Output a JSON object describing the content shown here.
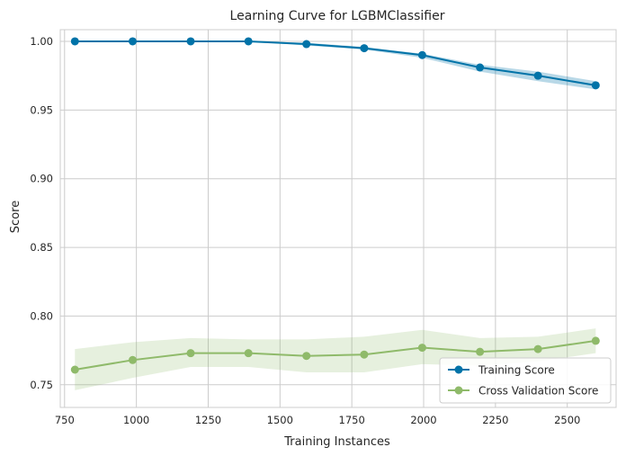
{
  "chart_data": {
    "type": "line",
    "title": "Learning Curve for LGBMClassifier",
    "xlabel": "Training Instances",
    "ylabel": "Score",
    "xlim": [
      735,
      2670
    ],
    "ylim": [
      0.7335,
      1.0085
    ],
    "xticks": [
      750,
      1000,
      1250,
      1500,
      1750,
      2000,
      2250,
      2500
    ],
    "yticks": [
      0.75,
      0.8,
      0.85,
      0.9,
      0.95,
      1.0
    ],
    "xtick_labels": [
      "750",
      "1000",
      "1250",
      "1500",
      "1750",
      "2000",
      "2250",
      "2500"
    ],
    "ytick_labels": [
      "0.75",
      "0.80",
      "0.85",
      "0.90",
      "0.95",
      "1.00"
    ],
    "grid": true,
    "legend_position": "bottom-right",
    "x": [
      786,
      987,
      1189,
      1390,
      1592,
      1793,
      1995,
      2196,
      2398,
      2599
    ],
    "series": [
      {
        "name": "Training Score",
        "color": "#0173a8",
        "values": [
          1.0,
          1.0,
          1.0,
          1.0,
          0.998,
          0.995,
          0.99,
          0.981,
          0.975,
          0.968
        ],
        "band_lower": [
          1.0,
          1.0,
          1.0,
          1.0,
          0.997,
          0.994,
          0.988,
          0.978,
          0.971,
          0.965
        ],
        "band_upper": [
          1.0,
          1.0,
          1.0,
          1.0,
          0.999,
          0.996,
          0.991,
          0.983,
          0.978,
          0.971
        ]
      },
      {
        "name": "Cross Validation Score",
        "color": "#8fba6a",
        "values": [
          0.761,
          0.768,
          0.773,
          0.773,
          0.771,
          0.772,
          0.777,
          0.774,
          0.776,
          0.782
        ],
        "band_lower": [
          0.746,
          0.755,
          0.763,
          0.763,
          0.759,
          0.759,
          0.765,
          0.764,
          0.767,
          0.773
        ],
        "band_upper": [
          0.776,
          0.781,
          0.784,
          0.783,
          0.783,
          0.785,
          0.79,
          0.784,
          0.785,
          0.791
        ]
      }
    ]
  }
}
